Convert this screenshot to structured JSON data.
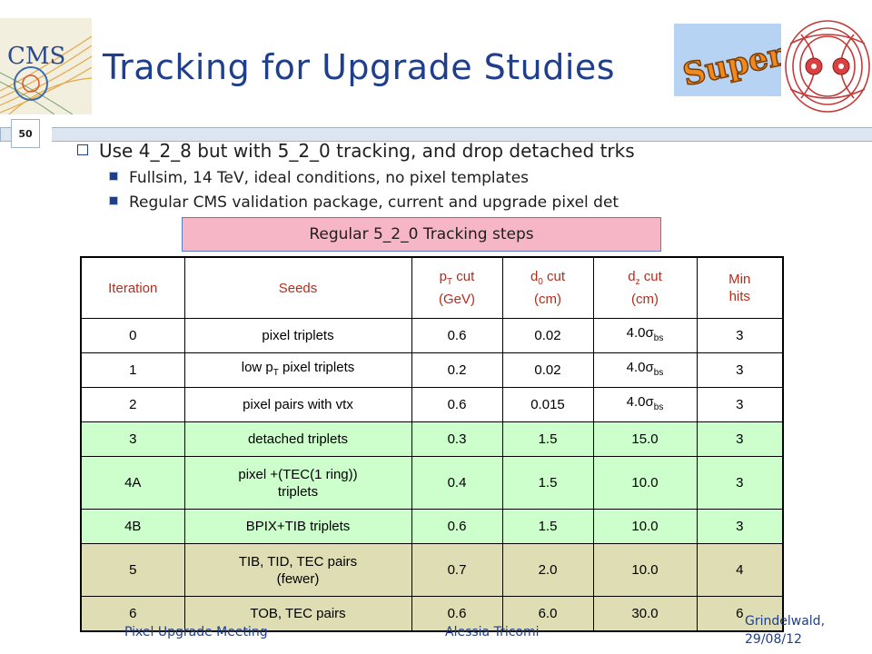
{
  "slide": {
    "title": "Tracking for Upgrade Studies",
    "number": "50",
    "logos": {
      "left_text": "CMS",
      "right_text": "Super"
    }
  },
  "bullets": {
    "main": "Use 4_2_8 but with 5_2_0 tracking, and drop detached trks",
    "sub": [
      "Fullsim, 14 TeV, ideal conditions, no pixel templates",
      "Regular CMS validation package, current and upgrade pixel det"
    ]
  },
  "steps_label": "Regular 5_2_0 Tracking steps",
  "table": {
    "headers": {
      "iteration": "Iteration",
      "seeds": "Seeds",
      "pt_main": "p",
      "pt_sub": "T",
      "pt_rest": " cut",
      "pt_unit": "(GeV)",
      "d0_main": "d",
      "d0_sub": "0",
      "d0_rest": " cut",
      "d0_unit": "(cm)",
      "dz_main": "d",
      "dz_sub": "z",
      "dz_rest": " cut",
      "dz_unit": "(cm)",
      "min1": "Min",
      "min2": "hits"
    },
    "rows": [
      {
        "iteration": "0",
        "seeds": "pixel triplets",
        "pt": "0.6",
        "d0": "0.02",
        "dz": "4.0σ",
        "dz_sub": "bs",
        "hits": "3"
      },
      {
        "iteration": "1",
        "seeds_pre": "low p",
        "seeds_sub": "T",
        "seeds_post": " pixel triplets",
        "pt": "0.2",
        "d0": "0.02",
        "dz": "4.0σ",
        "dz_sub": "bs",
        "hits": "3"
      },
      {
        "iteration": "2",
        "seeds": "pixel pairs with vtx",
        "pt": "0.6",
        "d0": "0.015",
        "dz": "4.0σ",
        "dz_sub": "bs",
        "hits": "3"
      },
      {
        "iteration": "3",
        "seeds": "detached triplets",
        "pt": "0.3",
        "d0": "1.5",
        "dz": "15.0",
        "hits": "3"
      },
      {
        "iteration": "4A",
        "seeds_line1": "pixel +(TEC(1 ring))",
        "seeds_line2": "triplets",
        "pt": "0.4",
        "d0": "1.5",
        "dz": "10.0",
        "hits": "3"
      },
      {
        "iteration": "4B",
        "seeds": "BPIX+TIB triplets",
        "pt": "0.6",
        "d0": "1.5",
        "dz": "10.0",
        "hits": "3"
      },
      {
        "iteration": "5",
        "seeds_line1": "TIB, TID, TEC pairs",
        "seeds_line2": "(fewer)",
        "pt": "0.7",
        "d0": "2.0",
        "dz": "10.0",
        "hits": "4"
      },
      {
        "iteration": "6",
        "seeds": "TOB, TEC pairs",
        "pt": "0.6",
        "d0": "6.0",
        "dz": "30.0",
        "hits": "6"
      }
    ]
  },
  "footer": {
    "left": "Pixel Upgrade Meeting",
    "center": "Alessia Tricomi",
    "right_line1": "Grindelwald,",
    "right_line2": "29/08/12"
  },
  "colors": {
    "title": "#1f3f8c",
    "header_text": "#b42d1c",
    "green_rows": "#ccffcc",
    "tan_rows": "#deddb4",
    "steps_box": "#f7b6c6"
  }
}
